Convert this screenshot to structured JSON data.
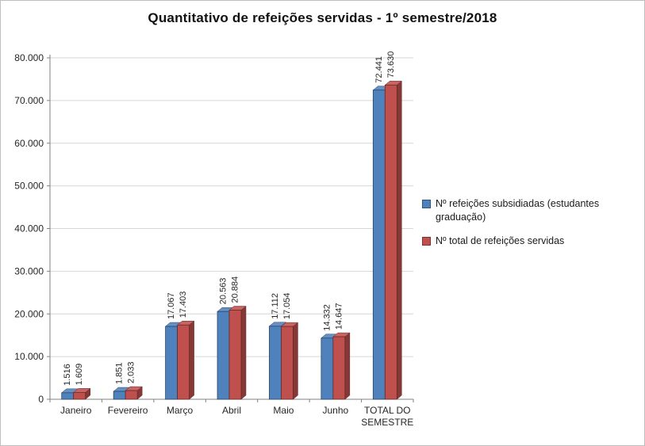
{
  "chart_data": {
    "type": "bar",
    "title": "Quantitativo de refeições servidas - 1º semestre/2018",
    "categories": [
      "Janeiro",
      "Fevereiro",
      "Março",
      "Abril",
      "Maio",
      "Junho",
      "TOTAL DO\nSEMESTRE"
    ],
    "series": [
      {
        "name": "Nº refeições subsidiadas (estudantes graduação)",
        "color": "#4F81BD",
        "values": [
          1516,
          1851,
          17067,
          20563,
          17112,
          14332,
          72441
        ],
        "labels": [
          "1.516",
          "1.851",
          "17.067",
          "20.563",
          "17.112",
          "14.332",
          "72.441"
        ]
      },
      {
        "name": "Nº total de refeições servidas",
        "color": "#C0504D",
        "values": [
          1609,
          2033,
          17403,
          20884,
          17054,
          14647,
          73630
        ],
        "labels": [
          "1.609",
          "2.033",
          "17.403",
          "20.884",
          "17.054",
          "14.647",
          "73.630"
        ]
      }
    ],
    "ylim": [
      0,
      80000
    ],
    "ytick_step": 10000,
    "ytick_labels": [
      "0",
      "10.000",
      "20.000",
      "30.000",
      "40.000",
      "50.000",
      "60.000",
      "70.000",
      "80.000"
    ],
    "grid": true,
    "legend_position": "right",
    "xlabel": "",
    "ylabel": ""
  }
}
